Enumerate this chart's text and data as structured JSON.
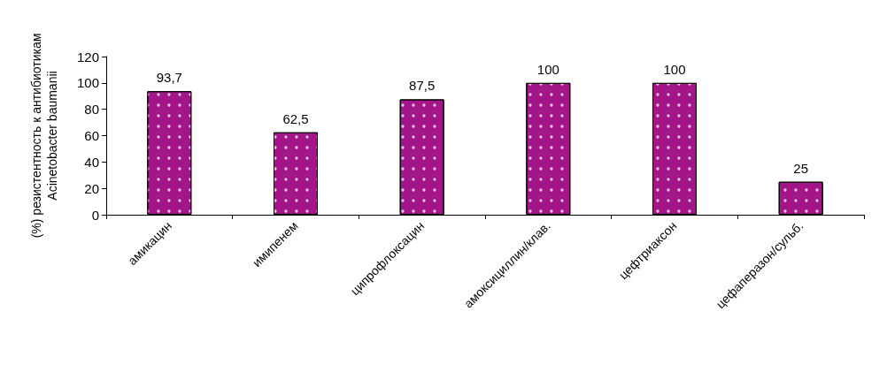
{
  "chart_data": {
    "type": "bar",
    "ylabel": "(%) резистентность к антибиотикам\nAcinetobacter baumanii",
    "categories": [
      "амикацин",
      "имипенем",
      "ципрофлоксацин",
      "амоксициллин/клав.",
      "цефтриаксон",
      "цефаперазон/сульб."
    ],
    "values": [
      93.7,
      62.5,
      87.5,
      100,
      100,
      25
    ],
    "value_labels": [
      "93,7",
      "62,5",
      "87,5",
      "100",
      "100",
      "25"
    ],
    "color": "#a3168a",
    "ylim": [
      0,
      120
    ],
    "yticks": [
      0,
      20,
      40,
      60,
      80,
      100,
      120
    ],
    "grid": false
  }
}
